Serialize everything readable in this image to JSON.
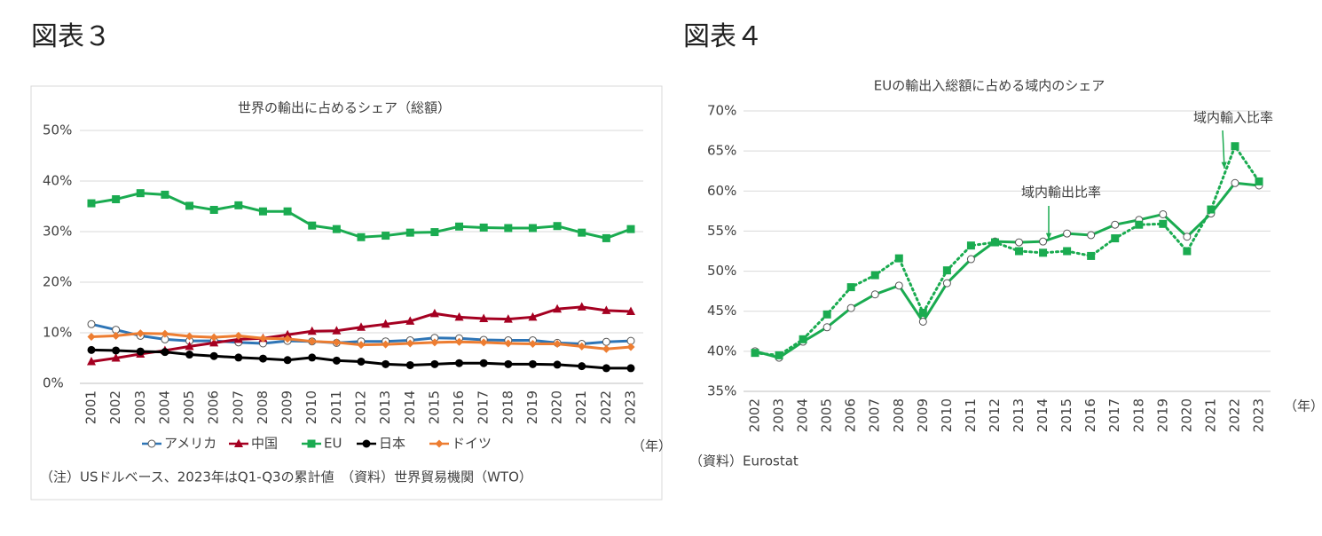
{
  "chart_data": [
    {
      "type": "line",
      "label": "図表３",
      "title": "世界の輸出に占めるシェア（総額）",
      "categories": [
        "2001",
        "2002",
        "2003",
        "2004",
        "2005",
        "2006",
        "2007",
        "2008",
        "2009",
        "2010",
        "2011",
        "2012",
        "2013",
        "2014",
        "2015",
        "2016",
        "2017",
        "2018",
        "2019",
        "2020",
        "2021",
        "2022",
        "2023"
      ],
      "x_unit": "（年）",
      "ylim": [
        0,
        50
      ],
      "yticks": [
        {
          "value": 0,
          "label": "0%"
        },
        {
          "value": 10,
          "label": "10%"
        },
        {
          "value": 20,
          "label": "20%"
        },
        {
          "value": 30,
          "label": "30%"
        },
        {
          "value": 40,
          "label": "40%"
        },
        {
          "value": 50,
          "label": "50%"
        }
      ],
      "grid": true,
      "legend": "bottom",
      "border": true,
      "series": [
        {
          "name": "アメリカ",
          "color": "#2e75b6",
          "marker": "circle-open",
          "dash": "solid",
          "values": [
            11.7,
            10.6,
            9.4,
            8.7,
            8.4,
            8.4,
            8.1,
            7.9,
            8.4,
            8.3,
            8.0,
            8.3,
            8.3,
            8.5,
            9.0,
            8.9,
            8.6,
            8.5,
            8.5,
            8.0,
            7.8,
            8.2,
            8.4
          ]
        },
        {
          "name": "中国",
          "color": "#a50021",
          "marker": "triangle",
          "dash": "solid",
          "values": [
            4.3,
            5.0,
            5.8,
            6.5,
            7.3,
            8.0,
            8.7,
            8.9,
            9.6,
            10.3,
            10.4,
            11.1,
            11.7,
            12.3,
            13.8,
            13.1,
            12.8,
            12.7,
            13.1,
            14.7,
            15.1,
            14.4,
            14.2
          ]
        },
        {
          "name": "EU",
          "color": "#1aab50",
          "marker": "square",
          "dash": "solid",
          "values": [
            35.6,
            36.4,
            37.6,
            37.3,
            35.1,
            34.3,
            35.2,
            34.0,
            34.0,
            31.2,
            30.5,
            28.9,
            29.2,
            29.8,
            29.9,
            31.0,
            30.8,
            30.7,
            30.7,
            31.1,
            29.8,
            28.7,
            30.5
          ]
        },
        {
          "name": "日本",
          "color": "#000000",
          "marker": "circle",
          "dash": "solid",
          "values": [
            6.6,
            6.5,
            6.3,
            6.2,
            5.7,
            5.4,
            5.1,
            4.9,
            4.6,
            5.1,
            4.5,
            4.3,
            3.8,
            3.6,
            3.8,
            4.0,
            4.0,
            3.8,
            3.8,
            3.7,
            3.4,
            3.0,
            3.0
          ]
        },
        {
          "name": "ドイツ",
          "color": "#ed7d31",
          "marker": "diamond",
          "dash": "solid",
          "values": [
            9.2,
            9.4,
            9.9,
            9.8,
            9.3,
            9.1,
            9.4,
            8.9,
            8.8,
            8.3,
            8.1,
            7.6,
            7.7,
            7.9,
            8.1,
            8.2,
            8.1,
            7.9,
            7.8,
            7.8,
            7.3,
            6.8,
            7.2
          ]
        }
      ],
      "note": "（注）USドルベース、2023年はQ1-Q3の累計値　（資料）世界貿易機関（WTO）"
    },
    {
      "type": "line",
      "label": "図表４",
      "title": "EUの輸出入総額に占める域内のシェア",
      "categories": [
        "2002",
        "2003",
        "2004",
        "2005",
        "2006",
        "2007",
        "2008",
        "2009",
        "2010",
        "2011",
        "2012",
        "2013",
        "2014",
        "2015",
        "2016",
        "2017",
        "2018",
        "2019",
        "2020",
        "2021",
        "2022",
        "2023"
      ],
      "x_unit": "（年）",
      "ylim": [
        35,
        70
      ],
      "yticks": [
        {
          "value": 35,
          "label": "35%"
        },
        {
          "value": 40,
          "label": "40%"
        },
        {
          "value": 45,
          "label": "45%"
        },
        {
          "value": 50,
          "label": "50%"
        },
        {
          "value": 55,
          "label": "55%"
        },
        {
          "value": 60,
          "label": "60%"
        },
        {
          "value": 65,
          "label": "65%"
        },
        {
          "value": 70,
          "label": "70%"
        }
      ],
      "grid": true,
      "legend": "annotation",
      "border": false,
      "series": [
        {
          "name": "域内輸出比率",
          "color": "#1aab50",
          "marker": "circle-open",
          "dash": "solid",
          "values": [
            40.0,
            39.2,
            41.2,
            43.0,
            45.4,
            47.1,
            48.2,
            43.7,
            48.5,
            51.5,
            53.7,
            53.6,
            53.7,
            54.7,
            54.5,
            55.8,
            56.4,
            57.1,
            54.3,
            57.2,
            61.0,
            60.7
          ]
        },
        {
          "name": "域内輸入比率",
          "color": "#1aab50",
          "marker": "square",
          "dash": "dotted",
          "values": [
            39.8,
            39.5,
            41.5,
            44.6,
            48.0,
            49.5,
            51.6,
            44.8,
            50.1,
            53.2,
            53.6,
            52.5,
            52.3,
            52.5,
            51.9,
            54.1,
            55.8,
            55.9,
            52.5,
            57.7,
            65.6,
            61.2
          ]
        }
      ],
      "note": "（資料）Eurostat"
    }
  ]
}
